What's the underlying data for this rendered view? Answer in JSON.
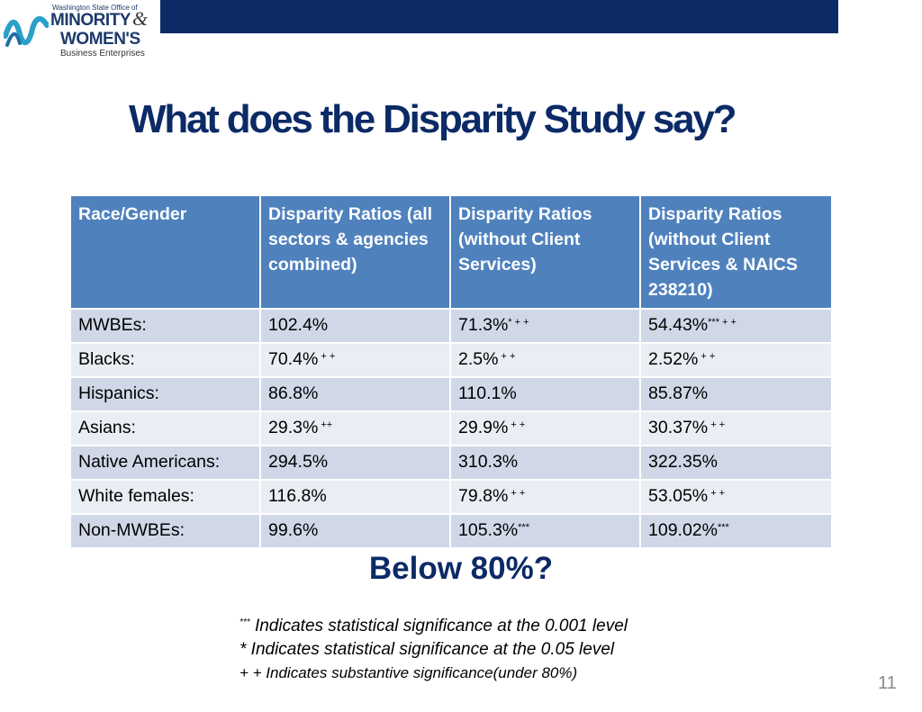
{
  "logo": {
    "small_text": "Washington State Office of",
    "line1": "MINORITY",
    "amp": "&",
    "line2": "WOMEN'S",
    "line3": "Business Enterprises"
  },
  "title": "What does the Disparity Study say?",
  "table": {
    "headers": [
      "Race/Gender",
      "Disparity Ratios (all sectors & agencies combined)",
      "Disparity Ratios (without Client Services)",
      "Disparity Ratios (without Client Services & NAICS 238210)"
    ],
    "rows": [
      {
        "label": "MWBEs:",
        "c1": "102.4%",
        "c1m": "",
        "c2": "71.3%",
        "c2m": "* + +",
        "c3": "54.43%",
        "c3m": "*** + +"
      },
      {
        "label": "Blacks:",
        "c1": "70.4%",
        "c1m": " + +",
        "c2": "2.5%",
        "c2m": " + +",
        "c3": "2.52%",
        "c3m": " + +"
      },
      {
        "label": "Hispanics:",
        "c1": "86.8%",
        "c1m": "",
        "c2": "110.1%",
        "c2m": "",
        "c3": "85.87%",
        "c3m": ""
      },
      {
        "label": "Asians:",
        "c1": "29.3%",
        "c1m": " ++",
        "c2": "29.9%",
        "c2m": " + +",
        "c3": "30.37%",
        "c3m": " + +"
      },
      {
        "label": "Native Americans:",
        "c1": "294.5%",
        "c1m": "",
        "c2": "310.3%",
        "c2m": "",
        "c3": "322.35%",
        "c3m": ""
      },
      {
        "label": "White females:",
        "c1": "116.8%",
        "c1m": "",
        "c2": "79.8%",
        "c2m": " + +",
        "c3": "53.05%",
        "c3m": " + +"
      },
      {
        "label": "Non-MWBEs:",
        "c1": "99.6%",
        "c1m": "",
        "c2": "105.3%",
        "c2m": "***",
        "c3": "109.02%",
        "c3m": "***"
      }
    ]
  },
  "below": "Below 80%?",
  "notes": {
    "n1_mark": "***",
    "n1": " Indicates statistical significance at the 0.001 level",
    "n2": "* Indicates statistical significance at the 0.05 level",
    "n3": "+ + Indicates substantive significance(under 80%)"
  },
  "page_number": "11",
  "colors": {
    "navy": "#0b2a66",
    "header_blue": "#4f81bd",
    "row_odd": "#d0d8e8",
    "row_even": "#e9edf4"
  }
}
